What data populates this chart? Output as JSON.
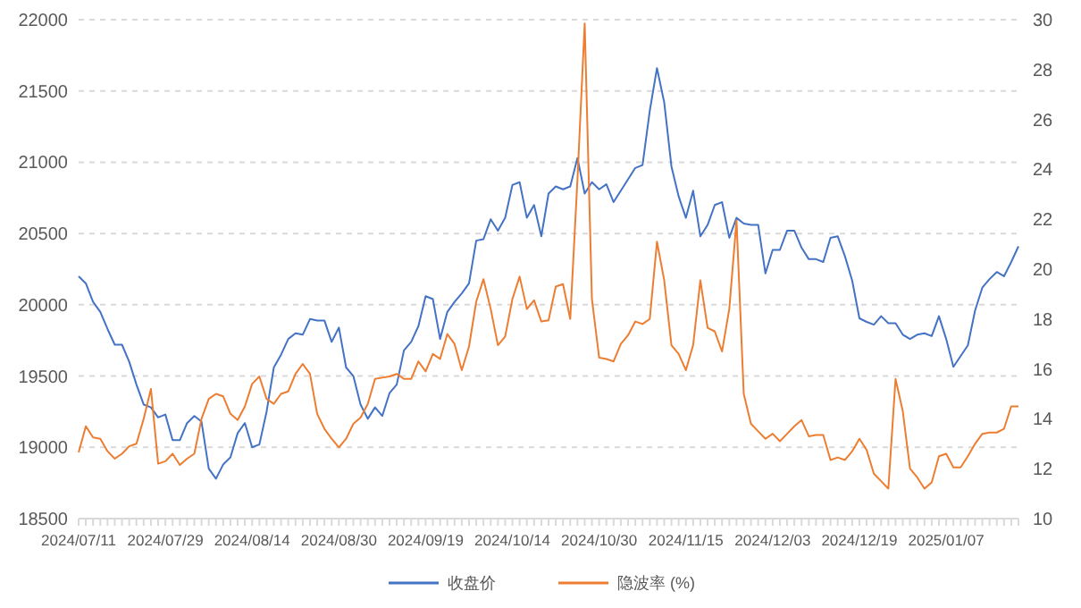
{
  "chart_data": {
    "type": "line",
    "categories": [
      "2024/07/11",
      null,
      null,
      null,
      null,
      null,
      null,
      null,
      null,
      null,
      null,
      null,
      "2024/07/29",
      null,
      null,
      null,
      null,
      null,
      null,
      null,
      null,
      null,
      null,
      null,
      "2024/08/14",
      null,
      null,
      null,
      null,
      null,
      null,
      null,
      null,
      null,
      null,
      null,
      "2024/08/30",
      null,
      null,
      null,
      null,
      null,
      null,
      null,
      null,
      null,
      null,
      null,
      "2024/09/19",
      null,
      null,
      null,
      null,
      null,
      null,
      null,
      null,
      null,
      null,
      null,
      "2024/10/14",
      null,
      null,
      null,
      null,
      null,
      null,
      null,
      null,
      null,
      null,
      null,
      "2024/10/30",
      null,
      null,
      null,
      null,
      null,
      null,
      null,
      null,
      null,
      null,
      null,
      "2024/11/15",
      null,
      null,
      null,
      null,
      null,
      null,
      null,
      null,
      null,
      null,
      null,
      "2024/12/03",
      null,
      null,
      null,
      null,
      null,
      null,
      null,
      null,
      null,
      null,
      null,
      "2024/12/19",
      null,
      null,
      null,
      null,
      null,
      null,
      null,
      null,
      null,
      null,
      null,
      "2025/01/07",
      null,
      null,
      null,
      null,
      null,
      null,
      null,
      null,
      null,
      null
    ],
    "series": [
      {
        "name": "收盘价",
        "color": "#4472c4",
        "values": [
          20200,
          20150,
          20020,
          19950,
          19830,
          19720,
          19720,
          19600,
          19440,
          19300,
          19280,
          19210,
          19230,
          19050,
          19050,
          19170,
          19220,
          19180,
          18850,
          18780,
          18880,
          18930,
          19100,
          19170,
          19000,
          19020,
          19250,
          19560,
          19650,
          19760,
          19800,
          19790,
          19900,
          19890,
          19890,
          19740,
          19840,
          19560,
          19500,
          19300,
          19200,
          19280,
          19220,
          19380,
          19440,
          19680,
          19740,
          19850,
          20060,
          20040,
          19760,
          19950,
          20020,
          20080,
          20150,
          20450,
          20460,
          20600,
          20520,
          20610,
          20840,
          20860,
          20610,
          20700,
          20480,
          20780,
          20830,
          20810,
          20830,
          21030,
          20780,
          20860,
          20810,
          20845,
          20720,
          20800,
          20880,
          20960,
          20980,
          21360,
          21660,
          21420,
          20970,
          20760,
          20610,
          20800,
          20480,
          20560,
          20700,
          20720,
          20470,
          20610,
          20570,
          20560,
          20560,
          20220,
          20385,
          20385,
          20520,
          20520,
          20400,
          20320,
          20320,
          20300,
          20470,
          20480,
          20340,
          20170,
          19905,
          19880,
          19860,
          19920,
          19870,
          19870,
          19790,
          19760,
          19790,
          19800,
          19780,
          19920,
          19760,
          19565,
          19640,
          19715,
          19960,
          20120,
          20180,
          20230,
          20200,
          20300,
          20410
        ]
      },
      {
        "name": "隐波率 (%)",
        "color": "#ed7d31",
        "axis": "y2",
        "values": [
          12.65,
          13.7,
          13.25,
          13.2,
          12.7,
          12.4,
          12.6,
          12.9,
          13.0,
          14.0,
          15.2,
          12.2,
          12.3,
          12.6,
          12.15,
          12.4,
          12.6,
          14.0,
          14.8,
          15.0,
          14.9,
          14.2,
          13.95,
          14.5,
          15.4,
          15.7,
          14.8,
          14.6,
          15.0,
          15.1,
          15.8,
          16.2,
          15.8,
          14.2,
          13.6,
          13.2,
          12.85,
          13.2,
          13.8,
          14.05,
          14.6,
          15.6,
          15.65,
          15.7,
          15.8,
          15.6,
          15.6,
          16.3,
          15.9,
          16.6,
          16.4,
          17.4,
          17.0,
          15.95,
          16.9,
          18.7,
          19.6,
          18.4,
          16.95,
          17.3,
          18.8,
          19.7,
          18.4,
          18.75,
          17.9,
          17.95,
          19.3,
          19.4,
          18.0,
          23.6,
          29.85,
          18.8,
          16.45,
          16.4,
          16.3,
          17.0,
          17.35,
          17.9,
          17.8,
          18.0,
          21.1,
          19.55,
          16.95,
          16.6,
          15.95,
          16.95,
          19.55,
          17.65,
          17.5,
          16.7,
          18.4,
          21.95,
          15.0,
          13.8,
          13.5,
          13.2,
          13.4,
          13.1,
          13.4,
          13.7,
          13.95,
          13.3,
          13.35,
          13.35,
          12.35,
          12.45,
          12.35,
          12.7,
          13.2,
          12.75,
          11.8,
          11.5,
          11.2,
          15.6,
          14.3,
          12.0,
          11.65,
          11.2,
          11.45,
          12.5,
          12.6,
          12.05,
          12.05,
          12.5,
          13.0,
          13.4,
          13.45,
          13.45,
          13.6,
          14.5,
          14.5
        ]
      }
    ],
    "ylim": [
      18500,
      22000
    ],
    "yticks": [
      18500,
      19000,
      19500,
      20000,
      20500,
      21000,
      21500,
      22000
    ],
    "y2lim": [
      10,
      30
    ],
    "y2ticks": [
      10,
      12,
      14,
      16,
      18,
      20,
      22,
      24,
      26,
      28,
      30
    ],
    "grid": "y",
    "legend": "bottom"
  }
}
